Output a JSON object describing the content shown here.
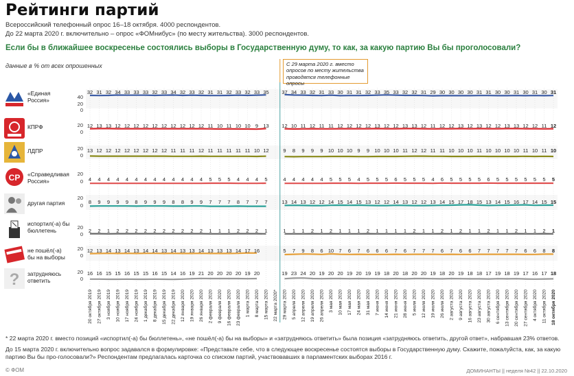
{
  "header": {
    "title": "Рейтинги партий",
    "sub1": "Всероссийский телефонный опрос 16–18 октября. 4000 респондентов.",
    "sub2": "До 22 марта 2020 г. включительно – опрос «ФОМнибус» (по месту жительства). 3000 респондентов.",
    "question": "Если бы в ближайшее воскресенье состоялись выборы в Государственную думу, то как, за какую партию Вы бы проголосовали?",
    "units": "данные в % от всех опрошенных"
  },
  "note_box": "С 29 марта 2020 г. вместо опросов по месту жительства проводятся телефонные опросы",
  "footnotes": {
    "f1": "*  22 марта 2020 г. вместо позиций «испортил(-а) бы бюллетень», «не пошёл(-а) бы на выборы» и «затрудняюсь ответить» была позиция «затрудняюсь ответить, другой ответ», набравшая 23% ответов.",
    "f2": "До 15 марта 2020 г. включительно вопрос задавался в формулировке: «Представьте себе, что в следующее воскресенье состоятся выборы в Государственную думу. Скажите, пожалуйста, как, за какую партию Вы бы про-голосовали?» Респондентам предлагалась карточка со списком партий, участвовавших в парламентских выборах 2016 г."
  },
  "footer": {
    "left": "© ФОМ",
    "right": "ДОМИНАНТЫ  ||  неделя №42  ||  22.10.2020"
  },
  "colors": {
    "green_text": "#2a7f3e",
    "divider": "#4aa3a3",
    "er": "#3b5ba5",
    "kprf": "#d7262b",
    "ldpr": "#8a8a1a",
    "sr": "#e05050",
    "other": "#2aa198",
    "spoil": "#666666",
    "noshow": "#e6a03a",
    "hard": "#9a9a9a"
  },
  "chart_data": {
    "type": "line",
    "x": [
      "20 октября 2019",
      "27 октября 2019",
      "3 ноября 2019",
      "10 ноября 2019",
      "17 ноября 2019",
      "24 ноября 2019",
      "1 декабря 2019",
      "8 декабря 2019",
      "15 декабря 2019",
      "22 декабря 2019",
      "12 января 2020",
      "19 января 2020",
      "26 января 2020",
      "2 февраля 2020",
      "9 февраля 2020",
      "16 февраля 2020",
      "23 февраля 2020",
      "1 марта 2020",
      "8 марта 2020",
      "15 марта 2020",
      "22 марта 2020*",
      "29 марта 2020",
      "5 апреля 2020",
      "12 апреля 2020",
      "19 апреля 2020",
      "26 апреля 2020",
      "3 мая 2020",
      "10 мая 2020",
      "17 мая 2020",
      "24 мая 2020",
      "31 мая 2020",
      "7 июня 2020",
      "14 июня 2020",
      "21 июня 2020",
      "28 июня 2020",
      "5 июля 2020",
      "12 июля 2020",
      "19 июля 2020",
      "26 июля 2020",
      "2 августа 2020",
      "9 августа 2020",
      "16 августа 2020",
      "23 августа 2020",
      "30 августа 2020",
      "6 сентября 2020",
      "13 сентября 2020",
      "20 сентября 2020",
      "27 сентября 2020",
      "4 октября 2020",
      "11 октября 2020",
      "18 октября 2020"
    ],
    "break_after_index": 20,
    "series": [
      {
        "name": "«Единая Россия»",
        "color": "#3b5ba5",
        "values": [
          32,
          31,
          32,
          34,
          33,
          33,
          33,
          32,
          33,
          34,
          32,
          33,
          32,
          31,
          31,
          32,
          33,
          32,
          33,
          35,
          null,
          37,
          34,
          33,
          32,
          31,
          33,
          30,
          31,
          31,
          32,
          33,
          35,
          33,
          32,
          32,
          31,
          29,
          30,
          30,
          30,
          30,
          31,
          31,
          30,
          30,
          31,
          30,
          31,
          30,
          31
        ]
      },
      {
        "name": "КПРФ",
        "color": "#d7262b",
        "values": [
          12,
          13,
          13,
          12,
          12,
          12,
          12,
          12,
          12,
          12,
          12,
          12,
          12,
          11,
          10,
          11,
          10,
          10,
          9,
          13,
          null,
          12,
          10,
          11,
          12,
          11,
          11,
          12,
          12,
          12,
          12,
          13,
          12,
          12,
          13,
          13,
          12,
          11,
          12,
          12,
          13,
          12,
          13,
          12,
          12,
          13,
          13,
          12,
          12,
          11,
          12
        ]
      },
      {
        "name": "ЛДПР",
        "color": "#8a8a1a",
        "values": [
          13,
          12,
          12,
          12,
          12,
          12,
          12,
          12,
          12,
          11,
          11,
          11,
          12,
          11,
          11,
          11,
          11,
          11,
          10,
          12,
          null,
          9,
          8,
          9,
          9,
          9,
          10,
          10,
          10,
          9,
          9,
          10,
          10,
          10,
          11,
          12,
          12,
          11,
          11,
          10,
          10,
          10,
          11,
          10,
          10,
          10,
          10,
          11,
          10,
          11,
          10
        ]
      },
      {
        "name": "«Справедливая Россия»",
        "color": "#e05050",
        "values": [
          4,
          4,
          4,
          4,
          4,
          4,
          4,
          4,
          4,
          4,
          4,
          4,
          4,
          5,
          5,
          5,
          4,
          4,
          4,
          5,
          null,
          4,
          4,
          4,
          4,
          4,
          5,
          5,
          5,
          4,
          5,
          5,
          5,
          6,
          5,
          5,
          5,
          4,
          6,
          5,
          5,
          5,
          5,
          6,
          5,
          5,
          5,
          5,
          5,
          5,
          5
        ]
      },
      {
        "name": "другая партия",
        "color": "#2aa198",
        "values": [
          8,
          9,
          9,
          9,
          9,
          8,
          9,
          9,
          9,
          8,
          8,
          9,
          9,
          7,
          7,
          7,
          8,
          7,
          7,
          7,
          null,
          13,
          14,
          13,
          12,
          12,
          14,
          15,
          14,
          15,
          13,
          12,
          12,
          14,
          13,
          12,
          12,
          13,
          14,
          15,
          17,
          18,
          15,
          13,
          14,
          15,
          16,
          17,
          14,
          15,
          15
        ]
      },
      {
        "name": "испортил(-а) бы бюллетень",
        "color": "#666666",
        "values": [
          2,
          2,
          1,
          2,
          2,
          2,
          2,
          2,
          2,
          2,
          2,
          2,
          2,
          1,
          1,
          1,
          2,
          2,
          2,
          1,
          null,
          1,
          1,
          1,
          2,
          1,
          2,
          1,
          1,
          1,
          2,
          1,
          1,
          1,
          1,
          2,
          1,
          1,
          2,
          1,
          2,
          1,
          1,
          2,
          1,
          1,
          2,
          1,
          1,
          2,
          1
        ]
      },
      {
        "name": "не пошёл(-а) бы на выборы",
        "color": "#e6a03a",
        "values": [
          12,
          13,
          14,
          13,
          14,
          13,
          14,
          14,
          13,
          14,
          13,
          13,
          14,
          13,
          13,
          13,
          14,
          17,
          16,
          null,
          null,
          5,
          7,
          9,
          8,
          6,
          10,
          7,
          6,
          7,
          6,
          6,
          6,
          7,
          6,
          7,
          7,
          7,
          6,
          7,
          6,
          6,
          7,
          7,
          7,
          7,
          7,
          6,
          6,
          8,
          8
        ]
      },
      {
        "name": "затрудняюсь ответить",
        "color": "#9a9a9a",
        "values": [
          16,
          16,
          15,
          15,
          16,
          15,
          15,
          16,
          15,
          14,
          16,
          19,
          21,
          20,
          20,
          20,
          20,
          19,
          20,
          null,
          null,
          19,
          23,
          24,
          20,
          19,
          20,
          20,
          19,
          20,
          19,
          19,
          18,
          20,
          18,
          20,
          20,
          19,
          18,
          20,
          19,
          18,
          18,
          17,
          19,
          18,
          19,
          17,
          16,
          17,
          18
        ]
      }
    ],
    "ytick_labels": [
      "40",
      "20",
      "0"
    ],
    "ylim": [
      0,
      40
    ]
  }
}
